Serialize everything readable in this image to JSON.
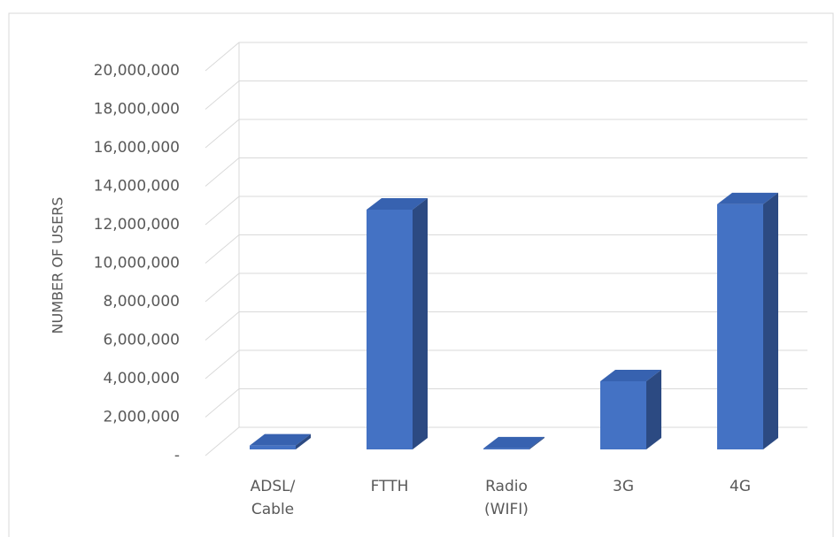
{
  "chart_data": {
    "type": "bar3d",
    "y_label": "NUMBER OF USERS",
    "categories": [
      "ADSL/\nCable",
      "FTTH",
      "Radio\n(WIFI)",
      "3G",
      "4G"
    ],
    "values": [
      200000,
      12460000,
      50000,
      3540000,
      12740000
    ],
    "color": "#4472c4",
    "ylim": [
      0,
      20000000
    ],
    "yticks": [
      {
        "value": 0,
        "label": "-"
      },
      {
        "value": 2000000,
        "label": "2,000,000"
      },
      {
        "value": 4000000,
        "label": "4,000,000"
      },
      {
        "value": 6000000,
        "label": "6,000,000"
      },
      {
        "value": 8000000,
        "label": "8,000,000"
      },
      {
        "value": 10000000,
        "label": "10,000,000"
      },
      {
        "value": 12000000,
        "label": "12,000,000"
      },
      {
        "value": 14000000,
        "label": "14,000,000"
      },
      {
        "value": 16000000,
        "label": "16,000,000"
      },
      {
        "value": 18000000,
        "label": "18,000,000"
      },
      {
        "value": 20000000,
        "label": "20,000,000"
      }
    ],
    "grid": true
  }
}
